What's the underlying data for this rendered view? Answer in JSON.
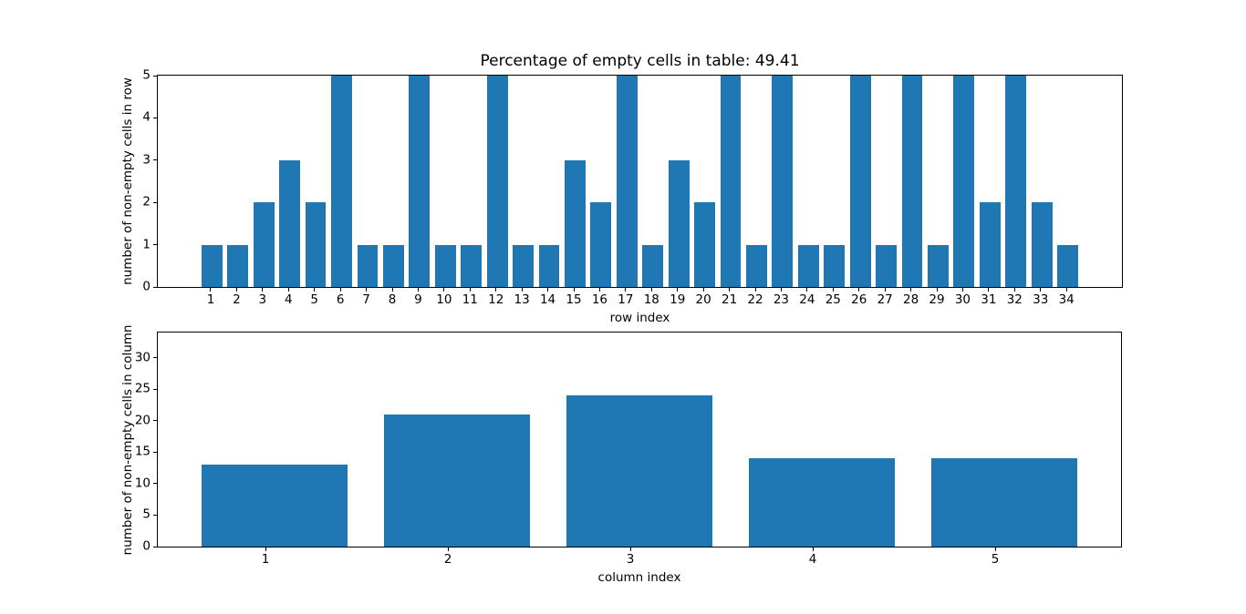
{
  "colors": {
    "bar": "#1f77b4",
    "spine": "#000000",
    "text": "#000000",
    "background": "#ffffff"
  },
  "chart_data": [
    {
      "type": "bar",
      "title": "Percentage of empty cells in table: 49.41",
      "xlabel": "row index",
      "ylabel": "number of non-empty cells in row",
      "categories": [
        1,
        2,
        3,
        4,
        5,
        6,
        7,
        8,
        9,
        10,
        11,
        12,
        13,
        14,
        15,
        16,
        17,
        18,
        19,
        20,
        21,
        22,
        23,
        24,
        25,
        26,
        27,
        28,
        29,
        30,
        31,
        32,
        33,
        34
      ],
      "values": [
        1,
        1,
        2,
        3,
        2,
        5,
        1,
        1,
        5,
        1,
        1,
        5,
        1,
        1,
        3,
        2,
        5,
        1,
        3,
        2,
        5,
        1,
        5,
        1,
        1,
        5,
        1,
        5,
        1,
        5,
        2,
        5,
        2,
        1
      ],
      "xlim": [
        -1.04,
        36.14
      ],
      "ylim": [
        0,
        5
      ],
      "yticks": [
        0,
        1,
        2,
        3,
        4,
        5
      ],
      "bar_width": 0.8,
      "bar_offset": 0.05,
      "grid": "off",
      "legend": "none"
    },
    {
      "type": "bar",
      "title": "",
      "xlabel": "column index",
      "ylabel": "number of non-empty cells in column",
      "categories": [
        1,
        2,
        3,
        4,
        5
      ],
      "values": [
        13,
        21,
        24,
        14,
        14
      ],
      "xlim": [
        0.41,
        5.69
      ],
      "ylim": [
        0,
        34
      ],
      "yticks": [
        0,
        5,
        10,
        15,
        20,
        25,
        30
      ],
      "bar_width": 0.8,
      "bar_offset": 0.05,
      "grid": "off",
      "legend": "none"
    }
  ]
}
